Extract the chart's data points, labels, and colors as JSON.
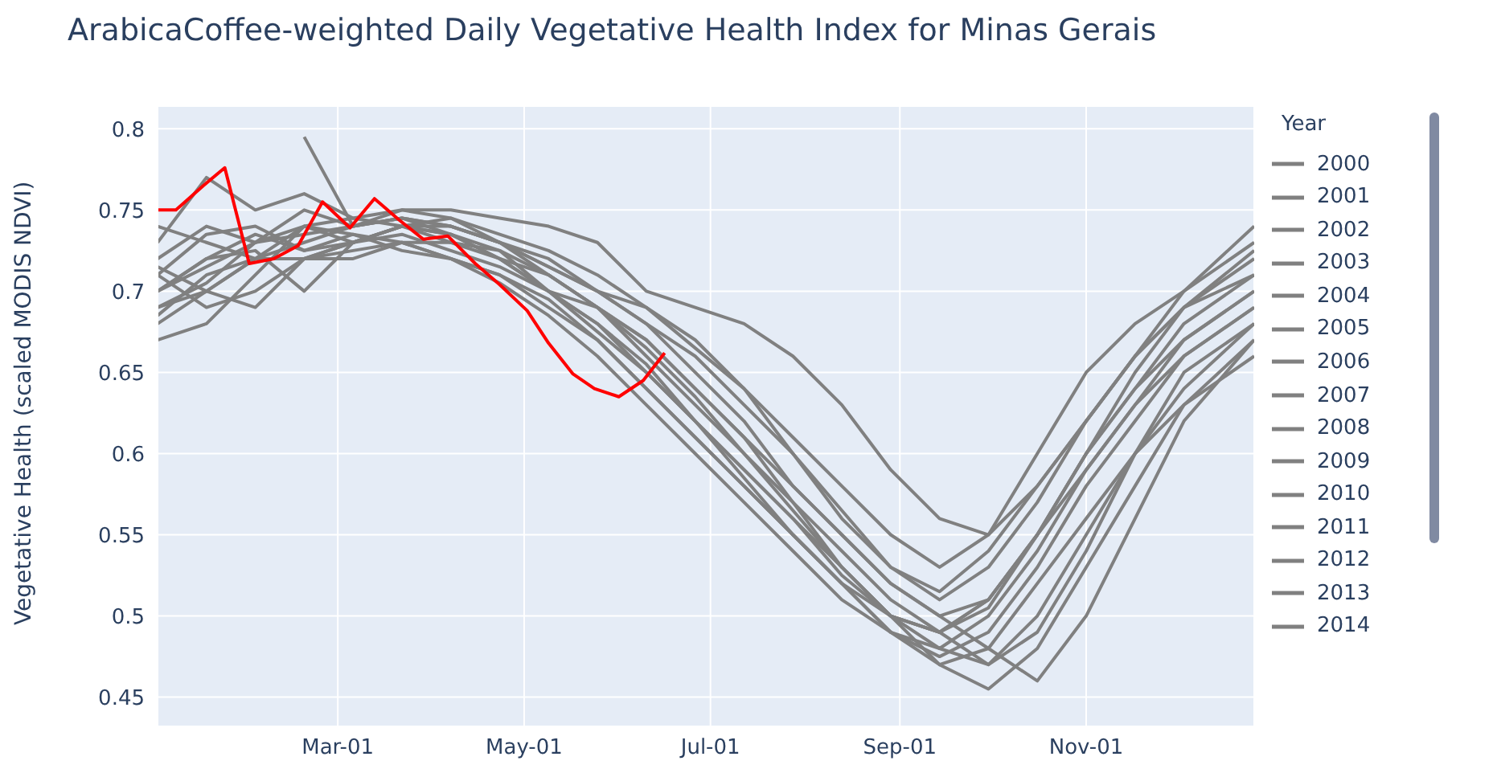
{
  "chart_data": {
    "type": "line",
    "title": "ArabicaCoffee-weighted Daily Vegetative Health Index for Minas Gerais",
    "ylabel": "Vegetative Health (scaled MODIS NDVI)",
    "legend_title": "Year",
    "legend": "right",
    "grid": true,
    "line_style": "solid",
    "marker": "none",
    "xlim": [
      "--01-01",
      "--12-26"
    ],
    "xticks": [
      {
        "value": "--03-01",
        "label": "Mar-01"
      },
      {
        "value": "--05-01",
        "label": "May-01"
      },
      {
        "value": "--07-01",
        "label": "Jul-01"
      },
      {
        "value": "--09-01",
        "label": "Sep-01"
      },
      {
        "value": "--11-01",
        "label": "Nov-01"
      }
    ],
    "ylim": [
      0.432,
      0.814
    ],
    "yticks": [
      0.45,
      0.5,
      0.55,
      0.6,
      0.65,
      0.7,
      0.75,
      0.8
    ],
    "x": [
      "--01-01",
      "--01-17",
      "--02-02",
      "--02-18",
      "--03-06",
      "--03-22",
      "--04-07",
      "--04-23",
      "--05-09",
      "--05-25",
      "--06-10",
      "--06-26",
      "--07-12",
      "--07-28",
      "--08-13",
      "--08-29",
      "--09-14",
      "--09-30",
      "--10-16",
      "--11-01",
      "--11-17",
      "--12-03",
      "--12-26"
    ],
    "series": [
      {
        "name": "2000",
        "color": "#808080",
        "values": [
          null,
          null,
          null,
          0.795,
          0.74,
          0.745,
          0.74,
          0.73,
          0.715,
          0.7,
          0.69,
          0.665,
          0.64,
          0.6,
          0.565,
          0.53,
          0.515,
          0.54,
          0.58,
          0.62,
          0.66,
          0.69,
          0.71
        ]
      },
      {
        "name": "2001",
        "color": "#808080",
        "values": [
          0.72,
          0.74,
          0.73,
          0.75,
          0.74,
          0.745,
          0.735,
          0.72,
          0.71,
          0.69,
          0.665,
          0.635,
          0.6,
          0.565,
          0.53,
          0.5,
          0.49,
          0.505,
          0.55,
          0.6,
          0.64,
          0.67,
          0.7
        ]
      },
      {
        "name": "2002",
        "color": "#808080",
        "values": [
          0.68,
          0.7,
          0.72,
          0.72,
          0.73,
          0.74,
          0.745,
          0.73,
          0.72,
          0.7,
          0.68,
          0.66,
          0.63,
          0.6,
          0.56,
          0.53,
          0.51,
          0.53,
          0.57,
          0.62,
          0.66,
          0.7,
          0.73
        ]
      },
      {
        "name": "2003",
        "color": "#808080",
        "values": [
          0.71,
          0.69,
          0.7,
          0.72,
          0.72,
          0.73,
          0.72,
          0.71,
          0.69,
          0.67,
          0.64,
          0.61,
          0.58,
          0.55,
          0.52,
          0.49,
          0.475,
          0.49,
          0.53,
          0.58,
          0.62,
          0.66,
          0.69
        ]
      },
      {
        "name": "2004",
        "color": "#808080",
        "values": [
          0.73,
          0.77,
          0.75,
          0.76,
          0.745,
          0.75,
          0.75,
          0.745,
          0.74,
          0.73,
          0.7,
          0.69,
          0.68,
          0.66,
          0.63,
          0.59,
          0.56,
          0.55,
          0.6,
          0.65,
          0.68,
          0.7,
          0.74
        ]
      },
      {
        "name": "2005",
        "color": "#808080",
        "values": [
          0.67,
          0.68,
          0.71,
          0.74,
          0.735,
          0.725,
          0.72,
          0.705,
          0.685,
          0.66,
          0.63,
          0.6,
          0.57,
          0.54,
          0.51,
          0.49,
          0.48,
          0.47,
          0.5,
          0.55,
          0.6,
          0.65,
          0.68
        ]
      },
      {
        "name": "2006",
        "color": "#808080",
        "values": [
          0.7,
          0.72,
          0.725,
          0.7,
          0.73,
          0.74,
          0.735,
          0.725,
          0.7,
          0.69,
          0.67,
          0.64,
          0.61,
          0.58,
          0.55,
          0.52,
          0.5,
          0.51,
          0.55,
          0.59,
          0.63,
          0.66,
          0.69
        ]
      },
      {
        "name": "2007",
        "color": "#808080",
        "values": [
          0.69,
          0.705,
          0.73,
          0.735,
          0.74,
          0.745,
          0.74,
          0.73,
          0.715,
          0.7,
          0.68,
          0.65,
          0.62,
          0.58,
          0.55,
          0.52,
          0.5,
          0.48,
          0.46,
          0.5,
          0.56,
          0.62,
          0.67
        ]
      },
      {
        "name": "2008",
        "color": "#808080",
        "values": [
          0.715,
          0.7,
          0.69,
          0.72,
          0.73,
          0.735,
          0.725,
          0.715,
          0.7,
          0.68,
          0.655,
          0.62,
          0.59,
          0.56,
          0.53,
          0.5,
          0.48,
          0.5,
          0.54,
          0.59,
          0.63,
          0.67,
          0.7
        ]
      },
      {
        "name": "2009",
        "color": "#808080",
        "values": [
          0.69,
          0.7,
          0.72,
          0.73,
          0.74,
          0.75,
          0.745,
          0.735,
          0.725,
          0.71,
          0.69,
          0.67,
          0.64,
          0.61,
          0.58,
          0.55,
          0.53,
          0.55,
          0.58,
          0.62,
          0.66,
          0.69,
          0.72
        ]
      },
      {
        "name": "2010",
        "color": "#808080",
        "values": [
          0.7,
          0.72,
          0.735,
          0.725,
          0.735,
          0.73,
          0.73,
          0.72,
          0.7,
          0.68,
          0.65,
          0.62,
          0.59,
          0.56,
          0.525,
          0.5,
          0.49,
          0.47,
          0.49,
          0.54,
          0.6,
          0.64,
          0.68
        ]
      },
      {
        "name": "2011",
        "color": "#808080",
        "values": [
          0.74,
          0.73,
          0.72,
          0.74,
          0.73,
          0.74,
          0.735,
          0.72,
          0.7,
          0.675,
          0.65,
          0.62,
          0.585,
          0.55,
          0.52,
          0.49,
          0.47,
          0.455,
          0.48,
          0.53,
          0.58,
          0.63,
          0.67
        ]
      },
      {
        "name": "2012",
        "color": "#808080",
        "values": [
          0.71,
          0.735,
          0.74,
          0.725,
          0.73,
          0.74,
          0.74,
          0.73,
          0.71,
          0.69,
          0.66,
          0.63,
          0.6,
          0.57,
          0.54,
          0.51,
          0.49,
          0.51,
          0.55,
          0.6,
          0.64,
          0.68,
          0.71
        ]
      },
      {
        "name": "2013",
        "color": "#808080",
        "values": [
          0.685,
          0.71,
          0.72,
          0.72,
          0.725,
          0.73,
          0.72,
          0.71,
          0.695,
          0.67,
          0.64,
          0.61,
          0.58,
          0.55,
          0.52,
          0.5,
          0.49,
          0.51,
          0.55,
          0.6,
          0.65,
          0.69,
          0.725
        ]
      },
      {
        "name": "2014",
        "color": "#808080",
        "values": [
          0.7,
          0.715,
          0.73,
          0.74,
          0.745,
          0.74,
          0.73,
          0.725,
          0.71,
          0.69,
          0.67,
          0.64,
          0.61,
          0.57,
          0.53,
          0.5,
          0.47,
          0.48,
          0.52,
          0.56,
          0.6,
          0.63,
          0.66
        ]
      },
      {
        "color": "#ff0000",
        "x": [
          "--01-01",
          "--01-07",
          "--01-16",
          "--01-23",
          "--01-31",
          "--02-08",
          "--02-16",
          "--02-24",
          "--03-05",
          "--03-13",
          "--03-21",
          "--03-29",
          "--04-06",
          "--04-15",
          "--04-23",
          "--05-02",
          "--05-09",
          "--05-17",
          "--05-24",
          "--06-01",
          "--06-09",
          "--06-16"
        ],
        "values": [
          0.75,
          0.75,
          0.765,
          0.776,
          0.717,
          0.72,
          0.728,
          0.755,
          0.739,
          0.757,
          0.744,
          0.732,
          0.734,
          0.717,
          0.704,
          0.688,
          0.668,
          0.649,
          0.64,
          0.635,
          0.645,
          0.662
        ]
      }
    ]
  }
}
